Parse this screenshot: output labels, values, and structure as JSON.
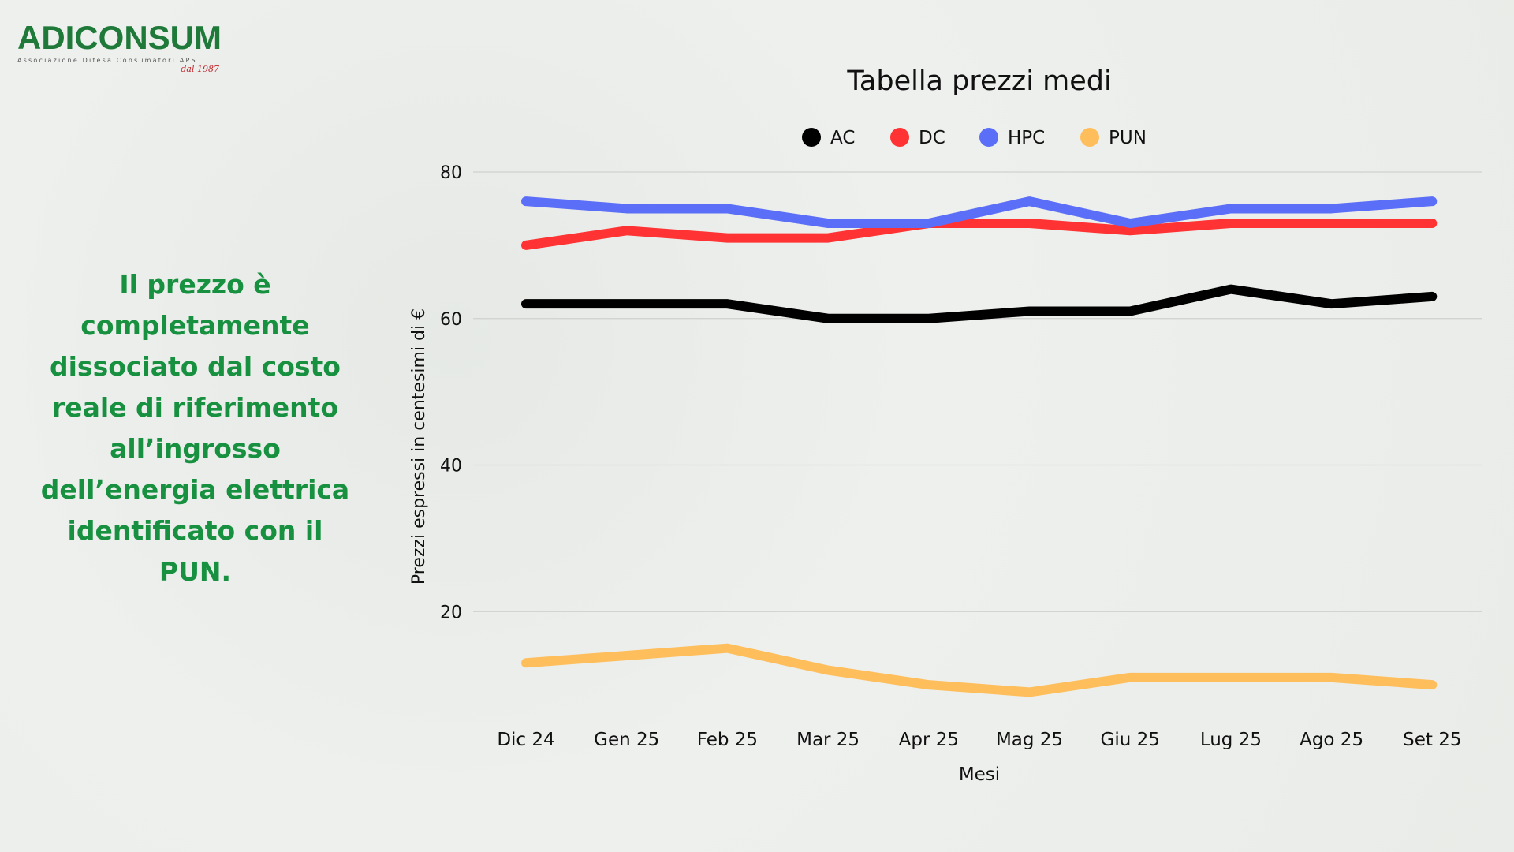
{
  "logo": {
    "name": "ADICONSUM",
    "subtitle": "Associazione Difesa Consumatori APS",
    "since": "dal 1987"
  },
  "claim": "Il prezzo è completamente dissociato dal costo reale di riferimento all’ingrosso dell’energia elettrica identificato con il PUN.",
  "chart_data": {
    "type": "line",
    "title": "Tabella prezzi medi",
    "xlabel": "Mesi",
    "ylabel": "Prezzi espressi in centesimi di €",
    "categories": [
      "Dic 24",
      "Gen 25",
      "Feb 25",
      "Mar 25",
      "Apr 25",
      "Mag 25",
      "Giu 25",
      "Lug 25",
      "Ago 25",
      "Set 25"
    ],
    "ylim": [
      0,
      80
    ],
    "yticks": [
      20,
      40,
      60,
      80
    ],
    "grid": true,
    "legend": "top-center",
    "series": [
      {
        "name": "AC",
        "color": "#000000",
        "values": [
          62,
          62,
          62,
          60,
          60,
          61,
          61,
          64,
          62,
          63
        ]
      },
      {
        "name": "DC",
        "color": "#ff3333",
        "values": [
          70,
          72,
          71,
          71,
          73,
          73,
          72,
          73,
          73,
          73
        ]
      },
      {
        "name": "HPC",
        "color": "#5b6ef8",
        "values": [
          76,
          75,
          75,
          73,
          73,
          76,
          73,
          75,
          75,
          76
        ]
      },
      {
        "name": "PUN",
        "color": "#ffbe5c",
        "values": [
          13,
          14,
          15,
          12,
          10,
          9,
          11,
          11,
          11,
          10
        ]
      }
    ]
  }
}
